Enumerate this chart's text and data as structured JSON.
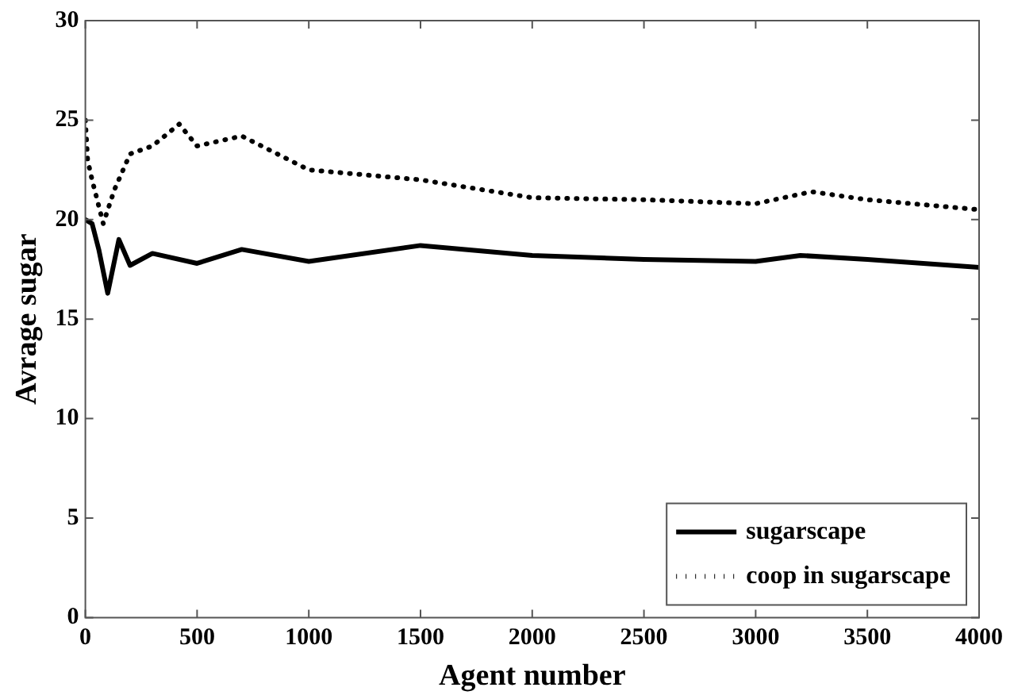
{
  "chart_data": {
    "type": "line",
    "xlabel": "Agent number",
    "ylabel": "Avrage sugar",
    "xlim": [
      0,
      4000
    ],
    "xticks": [
      0,
      500,
      1000,
      1500,
      2000,
      2500,
      3000,
      3500,
      4000
    ],
    "ylim": [
      0,
      30
    ],
    "yticks": [
      0,
      5,
      10,
      15,
      20,
      25,
      30
    ],
    "grid": false,
    "legend": "bottom right",
    "marker": "none",
    "series": [
      {
        "name": "sugarscape",
        "color": "#000000",
        "line_style": "solid",
        "x": [
          0,
          30,
          60,
          100,
          150,
          200,
          300,
          500,
          700,
          1000,
          1500,
          2000,
          2500,
          3000,
          3200,
          3500,
          4000
        ],
        "values": [
          20,
          19.8,
          18.5,
          16.3,
          19,
          17.7,
          18.3,
          17.8,
          18.5,
          17.9,
          18.7,
          18.2,
          18,
          17.9,
          18.2,
          18,
          17.6
        ]
      },
      {
        "name": "coop in sugarscape",
        "color": "#000000",
        "line_style": "dotted",
        "x": [
          0,
          10,
          30,
          80,
          130,
          200,
          300,
          420,
          500,
          700,
          1000,
          1500,
          2000,
          2500,
          3000,
          3250,
          3500,
          4000
        ],
        "values": [
          25,
          23,
          22,
          19.8,
          21.5,
          23.3,
          23.7,
          24.8,
          23.7,
          24.2,
          22.5,
          22,
          21.1,
          21,
          20.8,
          21.4,
          21,
          20.5
        ]
      }
    ]
  }
}
